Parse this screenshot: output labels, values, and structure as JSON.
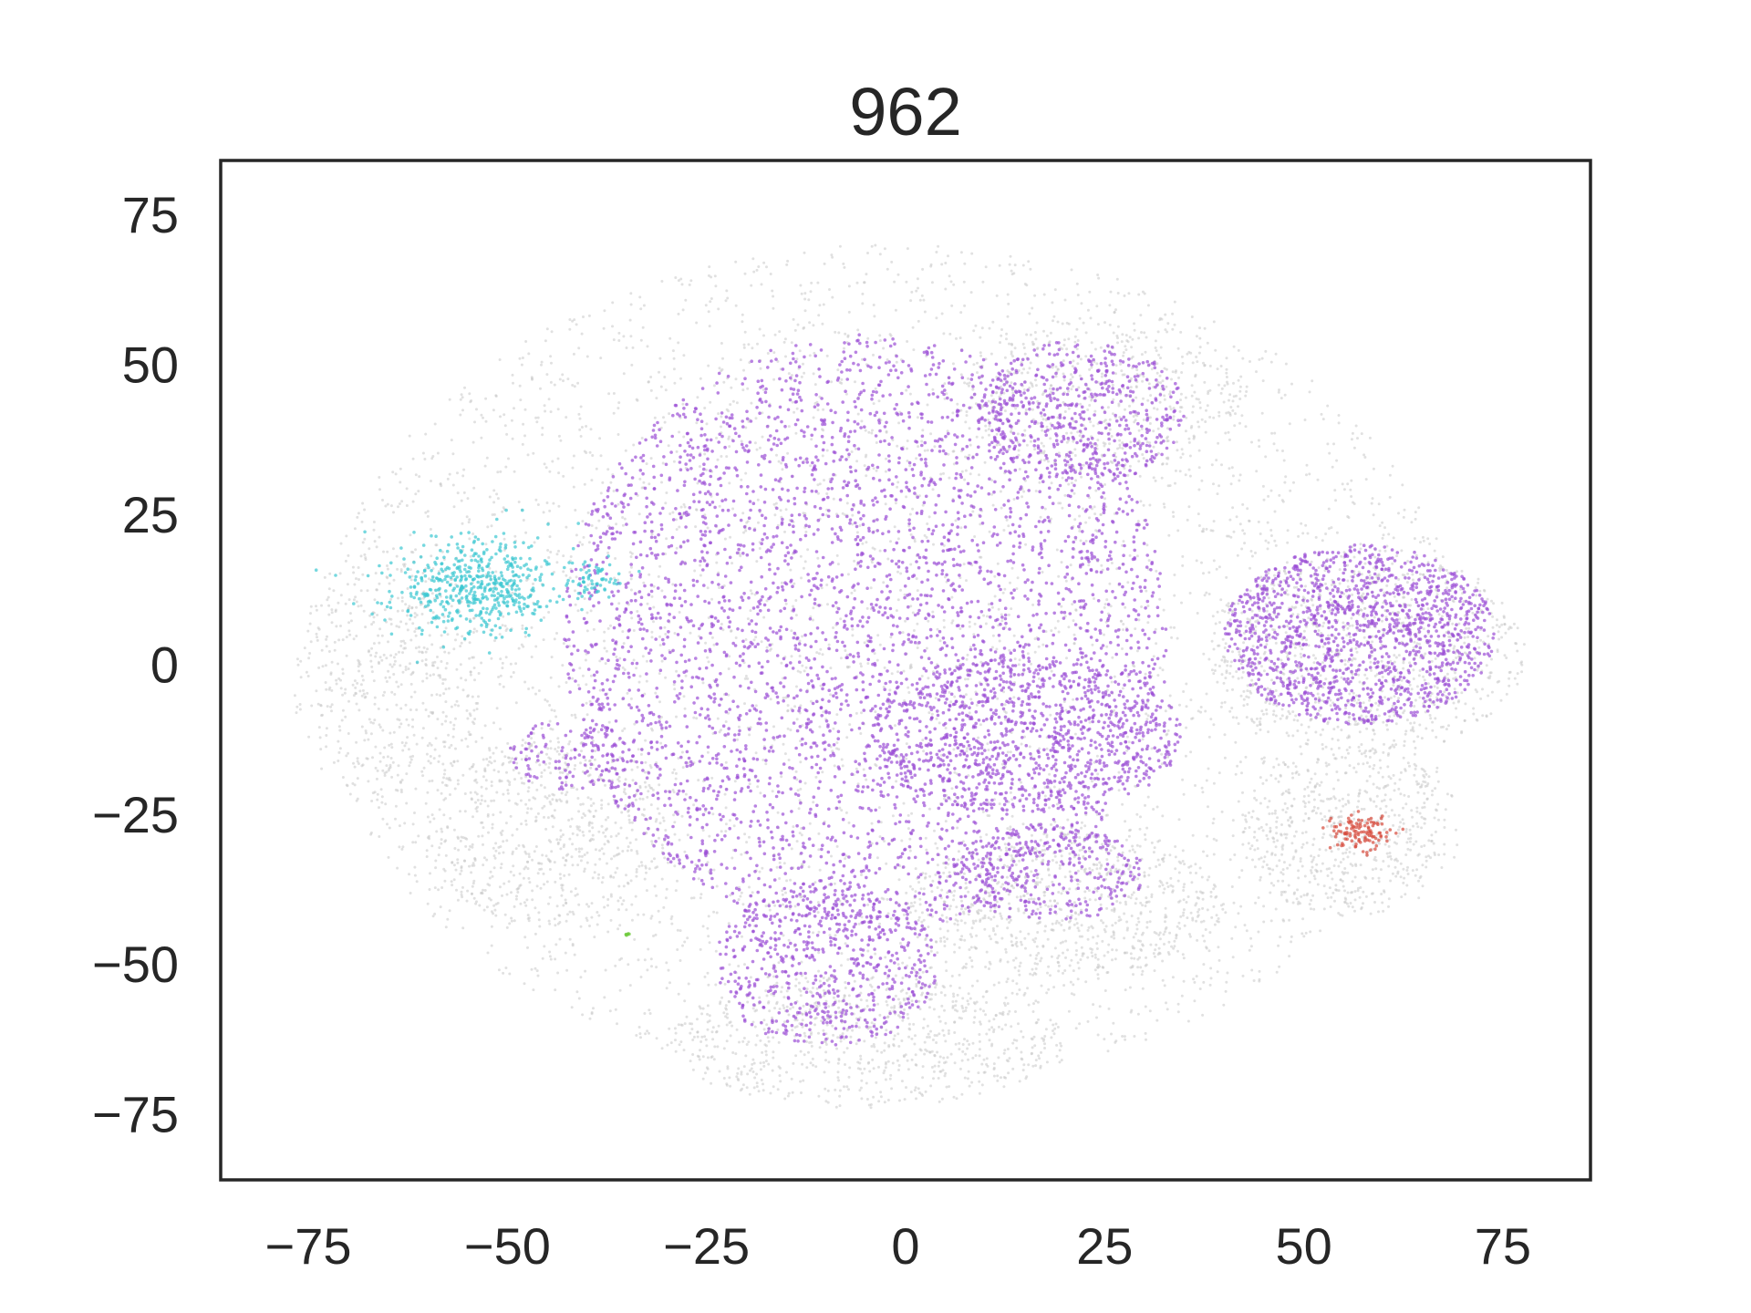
{
  "chart_data": {
    "type": "scatter",
    "title": "962",
    "xlabel": "",
    "ylabel": "",
    "xlim": [
      -86,
      86
    ],
    "ylim": [
      -86,
      84
    ],
    "xticks": [
      "−75",
      "−50",
      "−25",
      "0",
      "25",
      "50",
      "75"
    ],
    "yticks": [
      "75",
      "50",
      "25",
      "0",
      "−25",
      "−50",
      "−75"
    ],
    "xtick_values": [
      -75,
      -50,
      -25,
      0,
      25,
      50,
      75
    ],
    "ytick_values": [
      75,
      50,
      25,
      0,
      -25,
      -50,
      -75
    ],
    "grid": false,
    "legend": "none",
    "colors": {
      "background_points": "#c8c8c8",
      "purple": "#9b4fd6",
      "cyan": "#3cc8d2",
      "red": "#d64a3c",
      "green": "#6ecb3c"
    },
    "clusters": [
      {
        "group": "background",
        "color": "background_points",
        "cx": -2,
        "cy": 0,
        "rx": 72,
        "ry": 70,
        "n": 4200
      },
      {
        "group": "background",
        "color": "background_points",
        "cx": 58,
        "cy": 2,
        "rx": 20,
        "ry": 17,
        "n": 700
      },
      {
        "group": "background",
        "color": "background_points",
        "cx": 20,
        "cy": -40,
        "rx": 20,
        "ry": 12,
        "n": 600
      },
      {
        "group": "background",
        "color": "background_points",
        "cx": -5,
        "cy": -63,
        "rx": 25,
        "ry": 11,
        "n": 600
      },
      {
        "group": "background",
        "color": "background_points",
        "cx": -65,
        "cy": -2,
        "rx": 12,
        "ry": 22,
        "n": 400
      },
      {
        "group": "background",
        "color": "background_points",
        "cx": 56,
        "cy": -28,
        "rx": 14,
        "ry": 14,
        "n": 500
      },
      {
        "group": "background",
        "color": "background_points",
        "cx": 25,
        "cy": 45,
        "rx": 18,
        "ry": 13,
        "n": 400
      },
      {
        "group": "background",
        "color": "background_points",
        "cx": -45,
        "cy": -28,
        "rx": 15,
        "ry": 16,
        "n": 500
      },
      {
        "group": "purple",
        "color": "purple",
        "cx": -5,
        "cy": 5,
        "rx": 38,
        "ry": 50,
        "n": 3600
      },
      {
        "group": "purple",
        "color": "purple",
        "cx": 57,
        "cy": 5,
        "rx": 17,
        "ry": 15,
        "n": 1400
      },
      {
        "group": "purple",
        "color": "purple",
        "cx": 15,
        "cy": -12,
        "rx": 20,
        "ry": 13,
        "n": 800
      },
      {
        "group": "purple",
        "color": "purple",
        "cx": -10,
        "cy": -50,
        "rx": 14,
        "ry": 14,
        "n": 600
      },
      {
        "group": "purple",
        "color": "purple",
        "cx": 22,
        "cy": 42,
        "rx": 13,
        "ry": 12,
        "n": 500
      },
      {
        "group": "purple",
        "color": "purple",
        "cx": 18,
        "cy": -35,
        "rx": 12,
        "ry": 8,
        "n": 300
      },
      {
        "group": "purple",
        "color": "purple",
        "cx": -42,
        "cy": -15,
        "rx": 8,
        "ry": 6,
        "n": 120
      },
      {
        "group": "cyan",
        "color": "cyan",
        "cx": -54,
        "cy": 13,
        "rx": 10,
        "ry": 8,
        "n": 520
      },
      {
        "group": "cyan",
        "color": "cyan",
        "cx": -39,
        "cy": 14,
        "rx": 3,
        "ry": 3,
        "n": 60
      },
      {
        "group": "red",
        "color": "red",
        "cx": 57,
        "cy": -28,
        "rx": 4,
        "ry": 3,
        "n": 110
      },
      {
        "group": "green",
        "color": "green",
        "cx": -35,
        "cy": -45,
        "rx": 0.4,
        "ry": 0.4,
        "n": 6
      }
    ]
  }
}
